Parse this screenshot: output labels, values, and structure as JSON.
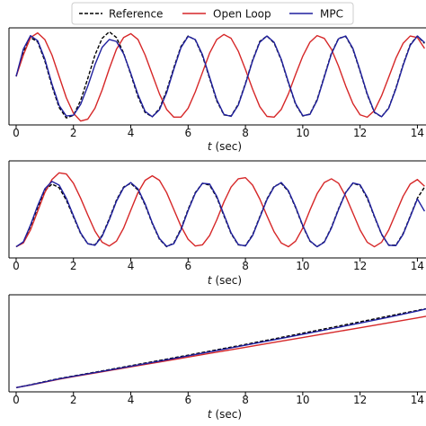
{
  "chart_data": [
    {
      "type": "line",
      "title": "",
      "xlabel": "t (sec)",
      "ylabel": "",
      "xlim": [
        -0.25,
        14.3
      ],
      "ylim": [
        -1.25,
        1.25
      ],
      "grid": false,
      "xticks": [
        0,
        2,
        4,
        6,
        8,
        10,
        12,
        14
      ],
      "xtick_labels": [
        "0",
        "2",
        "4",
        "6",
        "8",
        "10",
        "12",
        "14"
      ],
      "series": [
        {
          "name": "Reference",
          "color": "#000000",
          "dash": "dashed",
          "x": [
            0,
            0.25,
            0.5,
            0.75,
            1,
            1.25,
            1.5,
            1.75,
            2,
            2.25,
            2.5,
            2.75,
            3,
            3.25,
            3.5,
            3.75,
            4,
            4.25,
            4.5,
            4.75,
            5,
            5.25,
            5.5,
            5.75,
            6,
            6.25,
            6.5,
            6.75,
            7,
            7.25,
            7.5,
            7.75,
            8,
            8.25,
            8.5,
            8.75,
            9,
            9.25,
            9.5,
            9.75,
            10,
            10.25,
            10.5,
            10.75,
            11,
            11.25,
            11.5,
            11.75,
            12,
            12.25,
            12.5,
            12.75,
            13,
            13.25,
            13.5,
            13.75,
            14,
            14.25
          ],
          "y": [
            0,
            0.62,
            1,
            0.89,
            0.4,
            -0.25,
            -0.8,
            -1.07,
            -1.0,
            -0.62,
            -0.05,
            0.55,
            0.98,
            1.15,
            1.0,
            0.6,
            0.05,
            -0.52,
            -0.93,
            -1.04,
            -0.83,
            -0.37,
            0.22,
            0.77,
            1.04,
            0.94,
            0.53,
            -0.05,
            -0.63,
            -0.99,
            -1.02,
            -0.72,
            -0.18,
            0.42,
            0.9,
            1.04,
            0.86,
            0.42,
            -0.17,
            -0.72,
            -1.02,
            -0.97,
            -0.6,
            0.0,
            0.6,
            0.98,
            1.03,
            0.7,
            0.13,
            -0.47,
            -0.93,
            -1.04,
            -0.81,
            -0.3,
            0.3,
            0.82,
            1.04,
            0.85
          ]
        },
        {
          "name": "Open Loop",
          "color": "#d62728",
          "dash": "solid",
          "x": [
            0,
            0.25,
            0.5,
            0.75,
            1,
            1.25,
            1.5,
            1.75,
            2,
            2.25,
            2.5,
            2.75,
            3,
            3.25,
            3.5,
            3.75,
            4,
            4.25,
            4.5,
            4.75,
            5,
            5.25,
            5.5,
            5.75,
            6,
            6.25,
            6.5,
            6.75,
            7,
            7.25,
            7.5,
            7.75,
            8,
            8.25,
            8.5,
            8.75,
            9,
            9.25,
            9.5,
            9.75,
            10,
            10.25,
            10.5,
            10.75,
            11,
            11.25,
            11.5,
            11.75,
            12,
            12.25,
            12.5,
            12.75,
            13,
            13.25,
            13.5,
            13.75,
            14,
            14.25
          ],
          "y": [
            0,
            0.55,
            1.0,
            1.12,
            0.95,
            0.55,
            0.0,
            -0.55,
            -0.95,
            -1.15,
            -1.1,
            -0.82,
            -0.35,
            0.2,
            0.7,
            1.0,
            1.1,
            0.95,
            0.55,
            0.05,
            -0.45,
            -0.85,
            -1.05,
            -1.05,
            -0.82,
            -0.4,
            0.1,
            0.6,
            0.95,
            1.08,
            0.98,
            0.65,
            0.18,
            -0.33,
            -0.78,
            -1.03,
            -1.05,
            -0.85,
            -0.45,
            0.05,
            0.52,
            0.88,
            1.05,
            0.98,
            0.7,
            0.26,
            -0.25,
            -0.7,
            -0.99,
            -1.05,
            -0.88,
            -0.5,
            -0.02,
            0.47,
            0.85,
            1.04,
            1.0,
            0.72
          ]
        },
        {
          "name": "MPC",
          "color": "#1f1f9e",
          "dash": "solid",
          "x": [
            0,
            0.25,
            0.5,
            0.75,
            1,
            1.25,
            1.5,
            1.75,
            2,
            2.25,
            2.5,
            2.75,
            3,
            3.25,
            3.5,
            3.75,
            4,
            4.25,
            4.5,
            4.75,
            5,
            5.25,
            5.5,
            5.75,
            6,
            6.25,
            6.5,
            6.75,
            7,
            7.25,
            7.5,
            7.75,
            8,
            8.25,
            8.5,
            8.75,
            9,
            9.25,
            9.5,
            9.75,
            10,
            10.25,
            10.5,
            10.75,
            11,
            11.25,
            11.5,
            11.75,
            12,
            12.25,
            12.5,
            12.75,
            13,
            13.25,
            13.5,
            13.75,
            14,
            14.25
          ],
          "y": [
            0,
            0.7,
            1.05,
            0.92,
            0.45,
            -0.2,
            -0.75,
            -1.02,
            -1.0,
            -0.72,
            -0.25,
            0.3,
            0.75,
            0.95,
            0.9,
            0.58,
            0.08,
            -0.47,
            -0.9,
            -1.04,
            -0.86,
            -0.42,
            0.18,
            0.74,
            1.03,
            0.95,
            0.56,
            -0.02,
            -0.6,
            -0.98,
            -1.03,
            -0.74,
            -0.2,
            0.4,
            0.88,
            1.04,
            0.88,
            0.44,
            -0.15,
            -0.7,
            -1.01,
            -0.98,
            -0.62,
            -0.02,
            0.58,
            0.97,
            1.04,
            0.72,
            0.15,
            -0.45,
            -0.92,
            -1.04,
            -0.82,
            -0.32,
            0.28,
            0.8,
            1.04,
            0.87
          ]
        }
      ]
    },
    {
      "type": "line",
      "title": "",
      "xlabel": "t (sec)",
      "ylabel": "",
      "xlim": [
        -0.25,
        14.3
      ],
      "ylim": [
        -0.3,
        2.3
      ],
      "grid": false,
      "xticks": [
        0,
        2,
        4,
        6,
        8,
        10,
        12,
        14
      ],
      "xtick_labels": [
        "0",
        "2",
        "4",
        "6",
        "8",
        "10",
        "12",
        "14"
      ],
      "series": [
        {
          "name": "Reference",
          "color": "#000000",
          "dash": "dashed",
          "x": [
            0,
            0.25,
            0.5,
            0.75,
            1,
            1.25,
            1.5,
            1.75,
            2,
            2.25,
            2.5,
            2.75,
            3,
            3.25,
            3.5,
            3.75,
            4,
            4.25,
            4.5,
            4.75,
            5,
            5.25,
            5.5,
            5.75,
            6,
            6.25,
            6.5,
            6.75,
            7,
            7.25,
            7.5,
            7.75,
            8,
            8.25,
            8.5,
            8.75,
            9,
            9.25,
            9.5,
            9.75,
            10,
            10.25,
            10.5,
            10.75,
            11,
            11.25,
            11.5,
            11.75,
            12,
            12.25,
            12.5,
            12.75,
            13,
            13.25,
            13.5,
            13.75,
            14,
            14.25
          ],
          "y": [
            0.0,
            0.12,
            0.55,
            1.05,
            1.5,
            1.68,
            1.58,
            1.25,
            0.8,
            0.35,
            0.08,
            0.05,
            0.3,
            0.75,
            1.25,
            1.6,
            1.7,
            1.52,
            1.12,
            0.62,
            0.2,
            0.0,
            0.1,
            0.48,
            1.0,
            1.45,
            1.7,
            1.65,
            1.32,
            0.83,
            0.35,
            0.05,
            0.03,
            0.32,
            0.8,
            1.28,
            1.62,
            1.7,
            1.48,
            1.05,
            0.55,
            0.15,
            0.0,
            0.13,
            0.52,
            1.02,
            1.46,
            1.7,
            1.64,
            1.3,
            0.8,
            0.33,
            0.04,
            0.04,
            0.35,
            0.82,
            1.3,
            1.6
          ]
        },
        {
          "name": "Open Loop",
          "color": "#d62728",
          "dash": "solid",
          "x": [
            0,
            0.25,
            0.5,
            0.75,
            1,
            1.25,
            1.5,
            1.75,
            2,
            2.25,
            2.5,
            2.75,
            3,
            3.25,
            3.5,
            3.75,
            4,
            4.25,
            4.5,
            4.75,
            5,
            5.25,
            5.5,
            5.75,
            6,
            6.25,
            6.5,
            6.75,
            7,
            7.25,
            7.5,
            7.75,
            8,
            8.25,
            8.5,
            8.75,
            9,
            9.25,
            9.5,
            9.75,
            10,
            10.25,
            10.5,
            10.75,
            11,
            11.25,
            11.5,
            11.75,
            12,
            12.25,
            12.5,
            12.75,
            13,
            13.25,
            13.5,
            13.75,
            14,
            14.25
          ],
          "y": [
            0.0,
            0.1,
            0.45,
            0.95,
            1.45,
            1.8,
            1.98,
            1.95,
            1.7,
            1.3,
            0.85,
            0.42,
            0.12,
            0.02,
            0.15,
            0.5,
            0.98,
            1.45,
            1.78,
            1.9,
            1.78,
            1.45,
            1.0,
            0.55,
            0.2,
            0.02,
            0.05,
            0.3,
            0.72,
            1.2,
            1.6,
            1.82,
            1.85,
            1.65,
            1.28,
            0.83,
            0.4,
            0.1,
            0.0,
            0.15,
            0.5,
            0.98,
            1.42,
            1.72,
            1.82,
            1.7,
            1.35,
            0.9,
            0.45,
            0.12,
            0.0,
            0.12,
            0.45,
            0.9,
            1.35,
            1.68,
            1.8,
            1.62
          ]
        },
        {
          "name": "MPC",
          "color": "#1f1f9e",
          "dash": "solid",
          "x": [
            0,
            0.25,
            0.5,
            0.75,
            1,
            1.25,
            1.5,
            1.75,
            2,
            2.25,
            2.5,
            2.75,
            3,
            3.25,
            3.5,
            3.75,
            4,
            4.25,
            4.5,
            4.75,
            5,
            5.25,
            5.5,
            5.75,
            6,
            6.25,
            6.5,
            6.75,
            7,
            7.25,
            7.5,
            7.75,
            8,
            8.25,
            8.5,
            8.75,
            9,
            9.25,
            9.5,
            9.75,
            10,
            10.25,
            10.5,
            10.75,
            11,
            11.25,
            11.5,
            11.75,
            12,
            12.25,
            12.5,
            12.75,
            13,
            13.25,
            13.5,
            13.75,
            14,
            14.25
          ],
          "y": [
            0.0,
            0.13,
            0.58,
            1.1,
            1.55,
            1.75,
            1.65,
            1.3,
            0.83,
            0.37,
            0.08,
            0.04,
            0.28,
            0.72,
            1.22,
            1.58,
            1.72,
            1.55,
            1.15,
            0.64,
            0.22,
            0.01,
            0.08,
            0.45,
            0.97,
            1.43,
            1.7,
            1.68,
            1.35,
            0.86,
            0.37,
            0.06,
            0.02,
            0.3,
            0.78,
            1.26,
            1.6,
            1.72,
            1.5,
            1.07,
            0.57,
            0.16,
            0.0,
            0.12,
            0.5,
            1.0,
            1.45,
            1.71,
            1.66,
            1.33,
            0.82,
            0.34,
            0.04,
            0.03,
            0.33,
            0.8,
            1.28,
            0.95
          ]
        }
      ]
    },
    {
      "type": "line",
      "title": "",
      "xlabel": "t (sec)",
      "ylabel": "",
      "xlim": [
        -0.25,
        14.3
      ],
      "ylim": [
        -0.5,
        11
      ],
      "grid": false,
      "xticks": [
        0,
        2,
        4,
        6,
        8,
        10,
        12,
        14
      ],
      "xtick_labels": [
        "0",
        "2",
        "4",
        "6",
        "8",
        "10",
        "12",
        "14"
      ],
      "series": [
        {
          "name": "Reference",
          "color": "#000000",
          "dash": "dashed",
          "x": [
            0,
            0.5,
            1,
            1.5,
            2,
            3,
            4,
            5,
            6,
            7,
            8,
            9,
            10,
            11,
            12,
            13,
            14,
            14.3
          ],
          "y": [
            0,
            0.35,
            0.72,
            1.08,
            1.38,
            1.98,
            2.6,
            3.22,
            3.85,
            4.48,
            5.12,
            5.78,
            6.45,
            7.12,
            7.8,
            8.48,
            9.15,
            9.35
          ]
        },
        {
          "name": "Open Loop",
          "color": "#d62728",
          "dash": "solid",
          "x": [
            0,
            0.5,
            1,
            1.5,
            2,
            3,
            4,
            5,
            6,
            7,
            8,
            9,
            10,
            11,
            12,
            13,
            14,
            14.3
          ],
          "y": [
            0,
            0.3,
            0.65,
            1.0,
            1.3,
            1.88,
            2.46,
            3.04,
            3.62,
            4.2,
            4.78,
            5.36,
            5.94,
            6.52,
            7.1,
            7.68,
            8.26,
            8.45
          ]
        },
        {
          "name": "MPC",
          "color": "#1f1f9e",
          "dash": "solid",
          "x": [
            0,
            0.5,
            1,
            1.5,
            2,
            3,
            4,
            5,
            6,
            7,
            8,
            9,
            10,
            11,
            12,
            13,
            14,
            14.3
          ],
          "y": [
            0,
            0.32,
            0.68,
            1.04,
            1.35,
            1.93,
            2.53,
            3.14,
            3.76,
            4.39,
            5.03,
            5.67,
            6.32,
            6.98,
            7.65,
            8.35,
            9.08,
            9.32
          ]
        }
      ]
    }
  ],
  "legend": {
    "placement": "top",
    "entries": [
      {
        "label": "Reference",
        "color": "#000000",
        "dash": "dashed"
      },
      {
        "label": "Open Loop",
        "color": "#d62728",
        "dash": "solid"
      },
      {
        "label": "MPC",
        "color": "#1f1f9e",
        "dash": "solid"
      }
    ]
  }
}
